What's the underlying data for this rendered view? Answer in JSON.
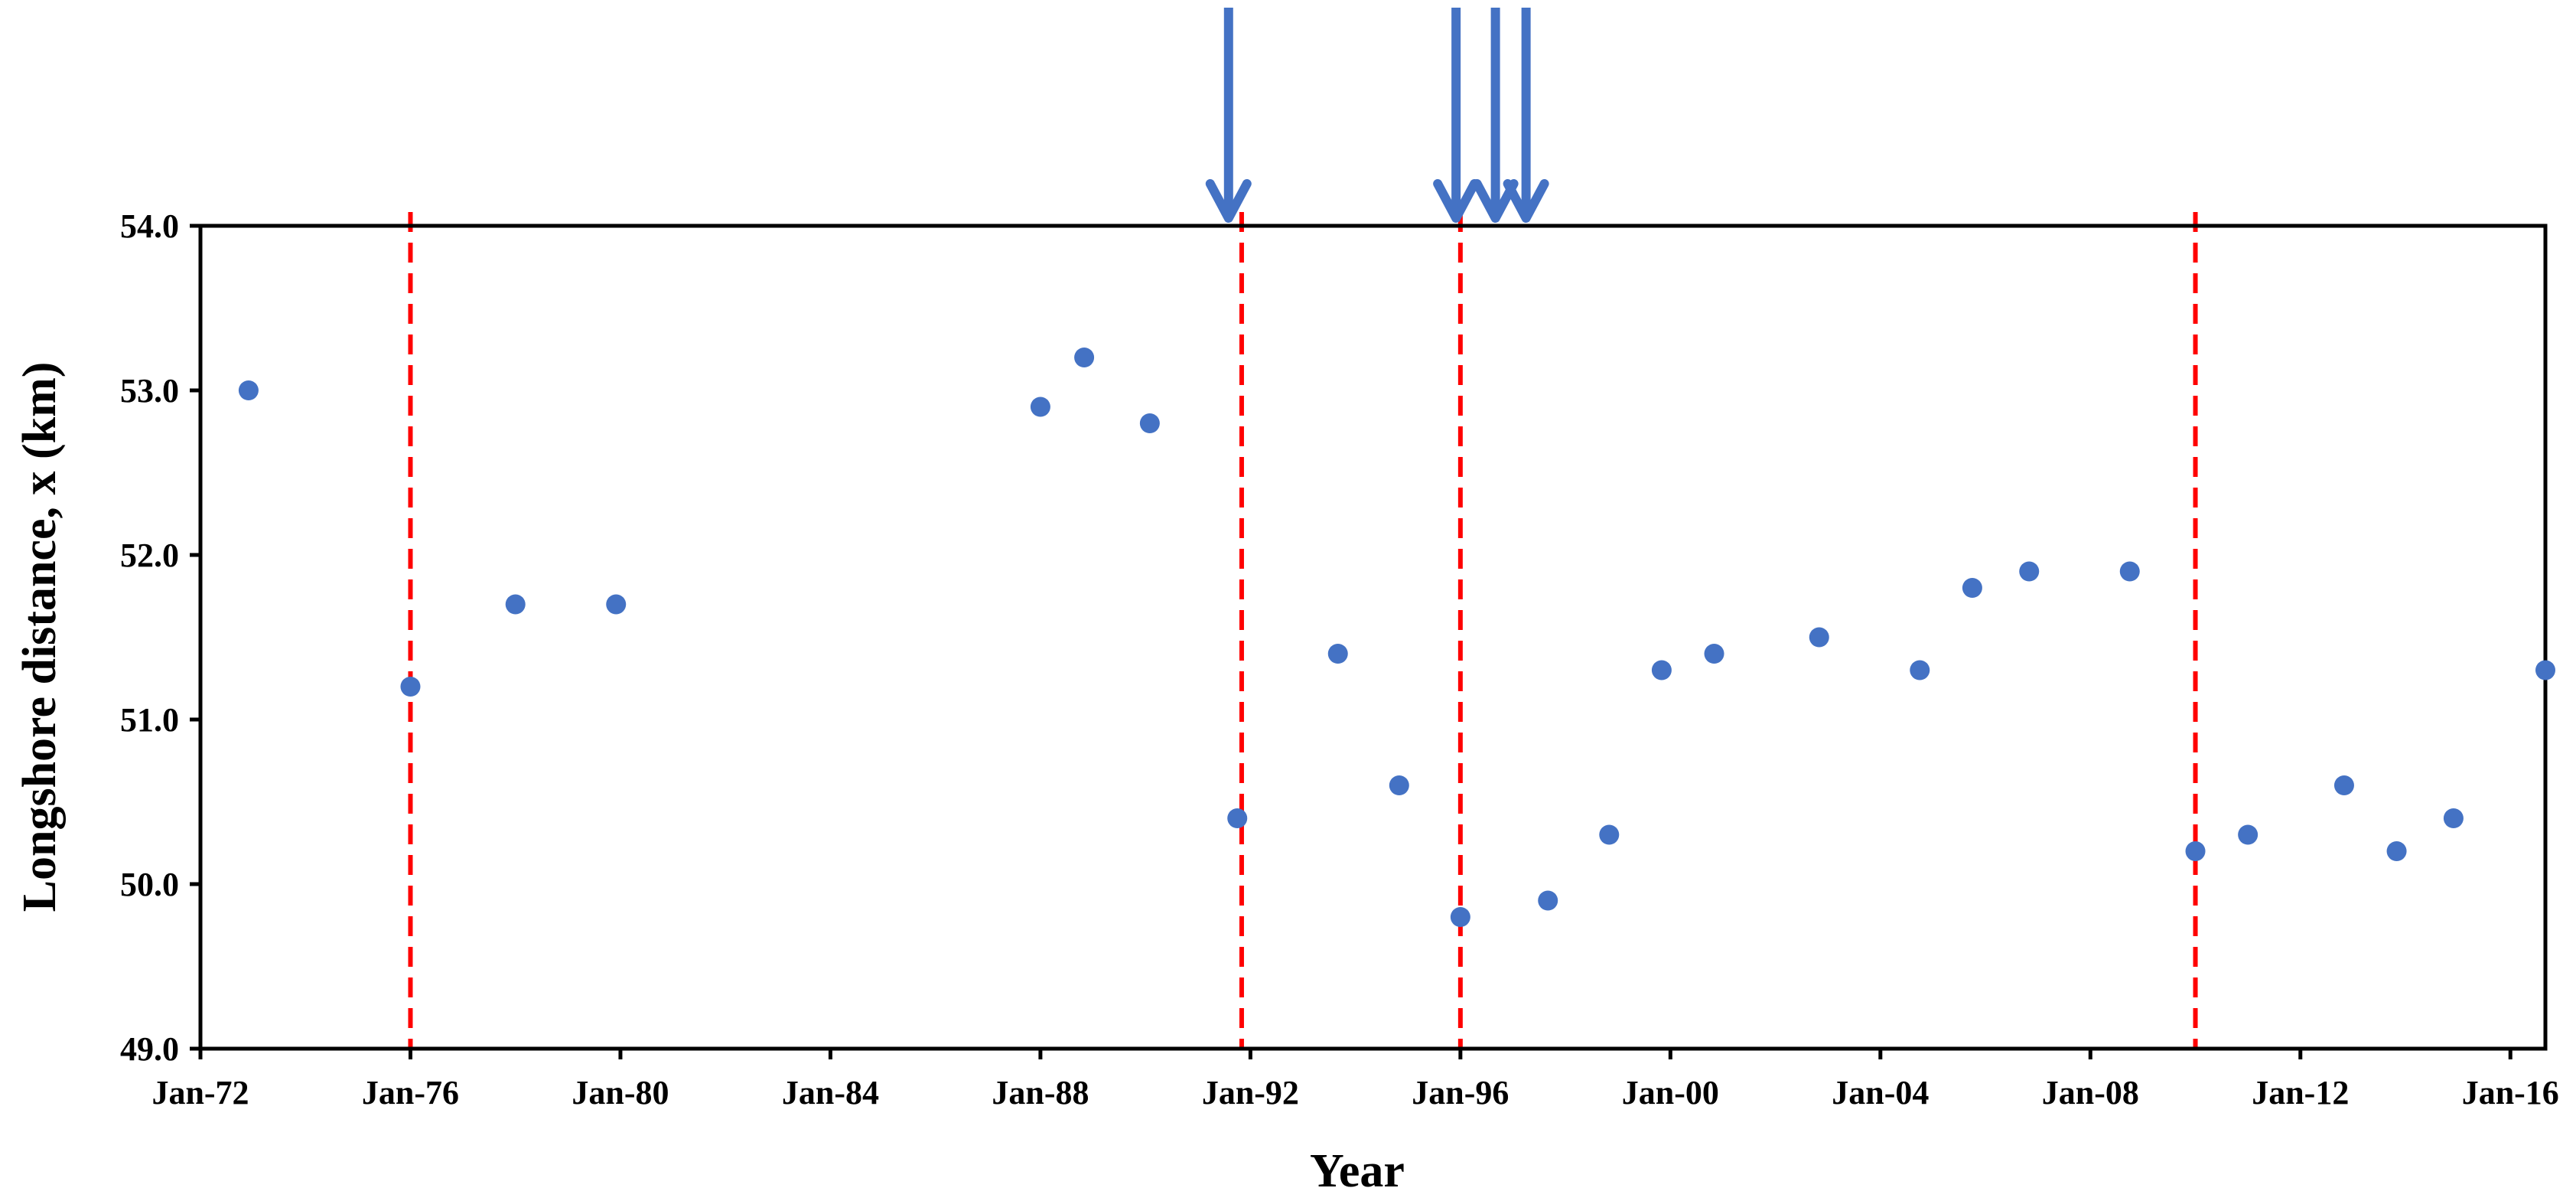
{
  "chart_data": {
    "type": "scatter",
    "xlabel": "Year",
    "ylabel": "Longshore distance, x (km)",
    "xlim": [
      "1972-01",
      "2016-09"
    ],
    "ylim": [
      49.0,
      54.0
    ],
    "x_ticks": [
      "1972-01",
      "1976-01",
      "1980-01",
      "1984-01",
      "1988-01",
      "1992-01",
      "1996-01",
      "2000-01",
      "2004-01",
      "2008-01",
      "2012-01",
      "2016-01"
    ],
    "x_tick_labels": [
      "Jan-72",
      "Jan-76",
      "Jan-80",
      "Jan-84",
      "Jan-88",
      "Jan-92",
      "Jan-96",
      "Jan-00",
      "Jan-04",
      "Jan-08",
      "Jan-12",
      "Jan-16"
    ],
    "y_ticks": [
      49.0,
      50.0,
      51.0,
      52.0,
      53.0,
      54.0
    ],
    "y_tick_labels": [
      "49.0",
      "50.0",
      "51.0",
      "52.0",
      "53.0",
      "54.0"
    ],
    "grid": false,
    "marker_color": "#4472C4",
    "points": [
      {
        "x": "1972-12",
        "y": 53.0
      },
      {
        "x": "1976-01",
        "y": 51.2
      },
      {
        "x": "1978-01",
        "y": 51.7
      },
      {
        "x": "1979-12",
        "y": 51.7
      },
      {
        "x": "1988-01",
        "y": 52.9
      },
      {
        "x": "1988-11",
        "y": 53.2
      },
      {
        "x": "1990-02",
        "y": 52.8
      },
      {
        "x": "1991-10",
        "y": 50.4
      },
      {
        "x": "1993-09",
        "y": 51.4
      },
      {
        "x": "1994-11",
        "y": 50.6
      },
      {
        "x": "1996-01",
        "y": 49.8
      },
      {
        "x": "1997-09",
        "y": 49.9
      },
      {
        "x": "1998-11",
        "y": 50.3
      },
      {
        "x": "1999-11",
        "y": 51.3
      },
      {
        "x": "2000-11",
        "y": 51.4
      },
      {
        "x": "2002-11",
        "y": 51.5
      },
      {
        "x": "2004-10",
        "y": 51.3
      },
      {
        "x": "2005-10",
        "y": 51.8
      },
      {
        "x": "2006-11",
        "y": 51.9
      },
      {
        "x": "2008-10",
        "y": 51.9
      },
      {
        "x": "2010-01",
        "y": 50.2
      },
      {
        "x": "2011-01",
        "y": 50.3
      },
      {
        "x": "2012-11",
        "y": 50.6
      },
      {
        "x": "2013-11",
        "y": 50.2
      },
      {
        "x": "2014-12",
        "y": 50.4
      },
      {
        "x": "2016-09",
        "y": 51.3
      }
    ],
    "vertical_lines": {
      "color": "#FF0000",
      "style": "dashed",
      "x": [
        "1976-01",
        "1991-11",
        "1996-01",
        "2010-01"
      ]
    },
    "arrows": {
      "color": "#4472C4",
      "direction": "down",
      "x": [
        "1991-08",
        "1995-12",
        "1996-09",
        "1997-04"
      ]
    }
  }
}
